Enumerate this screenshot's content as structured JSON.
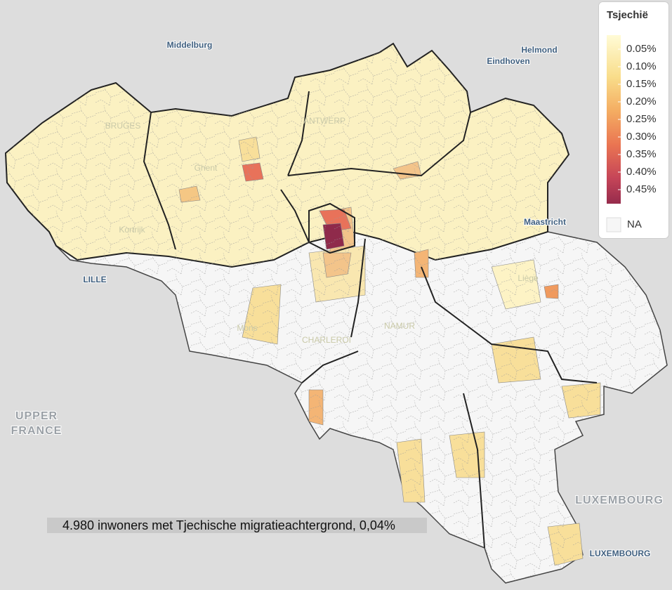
{
  "map": {
    "places": [
      {
        "label": "Middelburg",
        "kind": "city"
      },
      {
        "label": "Helmond",
        "kind": "city"
      },
      {
        "label": "Eindhoven",
        "kind": "city"
      },
      {
        "label": "BRUGES",
        "kind": "faint"
      },
      {
        "label": "ANTWERP",
        "kind": "faint"
      },
      {
        "label": "Ghent",
        "kind": "faint"
      },
      {
        "label": "Kortrijk",
        "kind": "faint"
      },
      {
        "label": "Maastricht",
        "kind": "city"
      },
      {
        "label": "LILLE",
        "kind": "city"
      },
      {
        "label": "Liège",
        "kind": "faint"
      },
      {
        "label": "Mons",
        "kind": "faint"
      },
      {
        "label": "CHARLEROI",
        "kind": "faint"
      },
      {
        "label": "NAMUR",
        "kind": "faint"
      },
      {
        "label": "UPPER",
        "kind": "region"
      },
      {
        "label": "FRANCE",
        "kind": "region"
      },
      {
        "label": "LUXEMBOURG",
        "kind": "region"
      },
      {
        "label": "LUXEMBOURG",
        "kind": "city"
      }
    ],
    "caption": "4.980 inwoners met Tjechische migratieachtergrond, 0,04%"
  },
  "legend": {
    "title": "Tsjechië",
    "range": [
      0.01,
      0.49
    ],
    "ticks": [
      {
        "value": 0.05,
        "label": "0.05%"
      },
      {
        "value": 0.1,
        "label": "0.10%"
      },
      {
        "value": 0.15,
        "label": "0.15%"
      },
      {
        "value": 0.2,
        "label": "0.20%"
      },
      {
        "value": 0.25,
        "label": "0.25%"
      },
      {
        "value": 0.3,
        "label": "0.30%"
      },
      {
        "value": 0.35,
        "label": "0.35%"
      },
      {
        "value": 0.4,
        "label": "0.40%"
      },
      {
        "value": 0.45,
        "label": "0.45%"
      }
    ],
    "na": "NA"
  }
}
